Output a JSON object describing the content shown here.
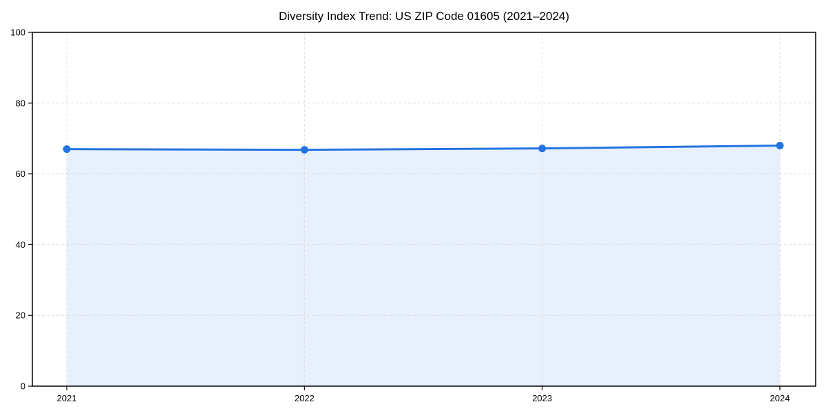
{
  "chart_data": {
    "type": "area",
    "title": "Diversity Index Trend: US ZIP Code 01605 (2021–2024)",
    "categories": [
      "2021",
      "2022",
      "2023",
      "2024"
    ],
    "x": [
      2021,
      2022,
      2023,
      2024
    ],
    "series": [
      {
        "name": "Diversity Index",
        "values": [
          67.0,
          66.8,
          67.2,
          68.0
        ]
      }
    ],
    "xlabel": "",
    "ylabel": "",
    "ylim": [
      0,
      100
    ],
    "yticks": [
      0,
      20,
      40,
      60,
      80,
      100
    ],
    "ytick_labels": [
      "0",
      "20",
      "40",
      "60",
      "80",
      "100"
    ],
    "grid": true,
    "grid_style": "dashed",
    "legend": false,
    "marker": "circle",
    "colors": {
      "line": "#2374e0",
      "marker": "#2374e0",
      "area_fill": "#e8f0fc",
      "gridline": "#dcdcdc",
      "axis": "#000000",
      "text": "#000000",
      "background": "#ffffff"
    }
  }
}
